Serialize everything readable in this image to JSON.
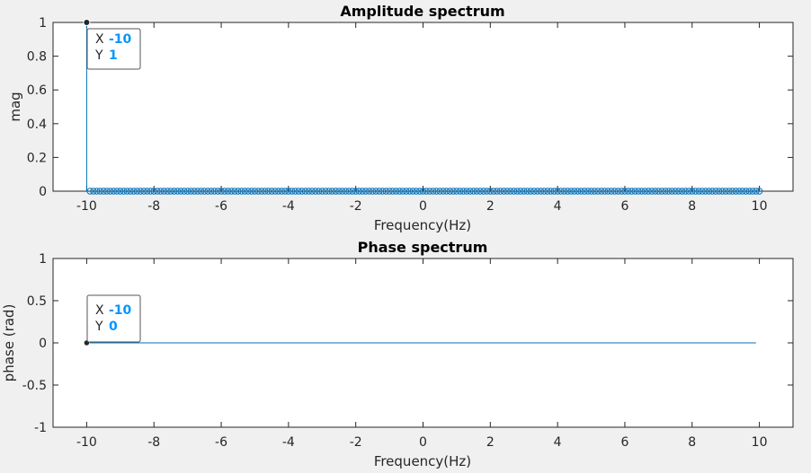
{
  "chart_data": [
    {
      "type": "stem",
      "title": "Amplitude spectrum",
      "xlabel": "Frequency(Hz)",
      "ylabel": "mag",
      "xlim": [
        -11,
        11
      ],
      "ylim": [
        0,
        1
      ],
      "xticks": [
        -10,
        -8,
        -6,
        -4,
        -2,
        0,
        2,
        4,
        6,
        8,
        10
      ],
      "yticks": [
        "0",
        "0.2",
        "0.4",
        "0.6",
        "0.8",
        "1"
      ],
      "x_start": -10,
      "x_end": 10,
      "x_step": 0.1,
      "series": [
        {
          "spike_x": -10,
          "spike_y": 1,
          "other_values": 0
        }
      ],
      "datatip": {
        "x_label": "X",
        "x_value": "-10",
        "y_label": "Y",
        "y_value": "1"
      },
      "color": "#0072bd"
    },
    {
      "type": "line",
      "title": "Phase spectrum",
      "xlabel": "Frequency(Hz)",
      "ylabel": "phase (rad)",
      "xlim": [
        -11,
        11
      ],
      "ylim": [
        -1,
        1
      ],
      "xticks": [
        -10,
        -8,
        -6,
        -4,
        -2,
        0,
        2,
        4,
        6,
        8,
        10
      ],
      "yticks": [
        "-1",
        "-0.5",
        "0",
        "0.5",
        "1"
      ],
      "series": [
        {
          "x": [
            -10,
            9.9
          ],
          "y": [
            0,
            0
          ]
        }
      ],
      "datatip": {
        "x_label": "X",
        "x_value": "-10",
        "y_label": "Y",
        "y_value": "0"
      },
      "color": "#0072bd"
    }
  ]
}
